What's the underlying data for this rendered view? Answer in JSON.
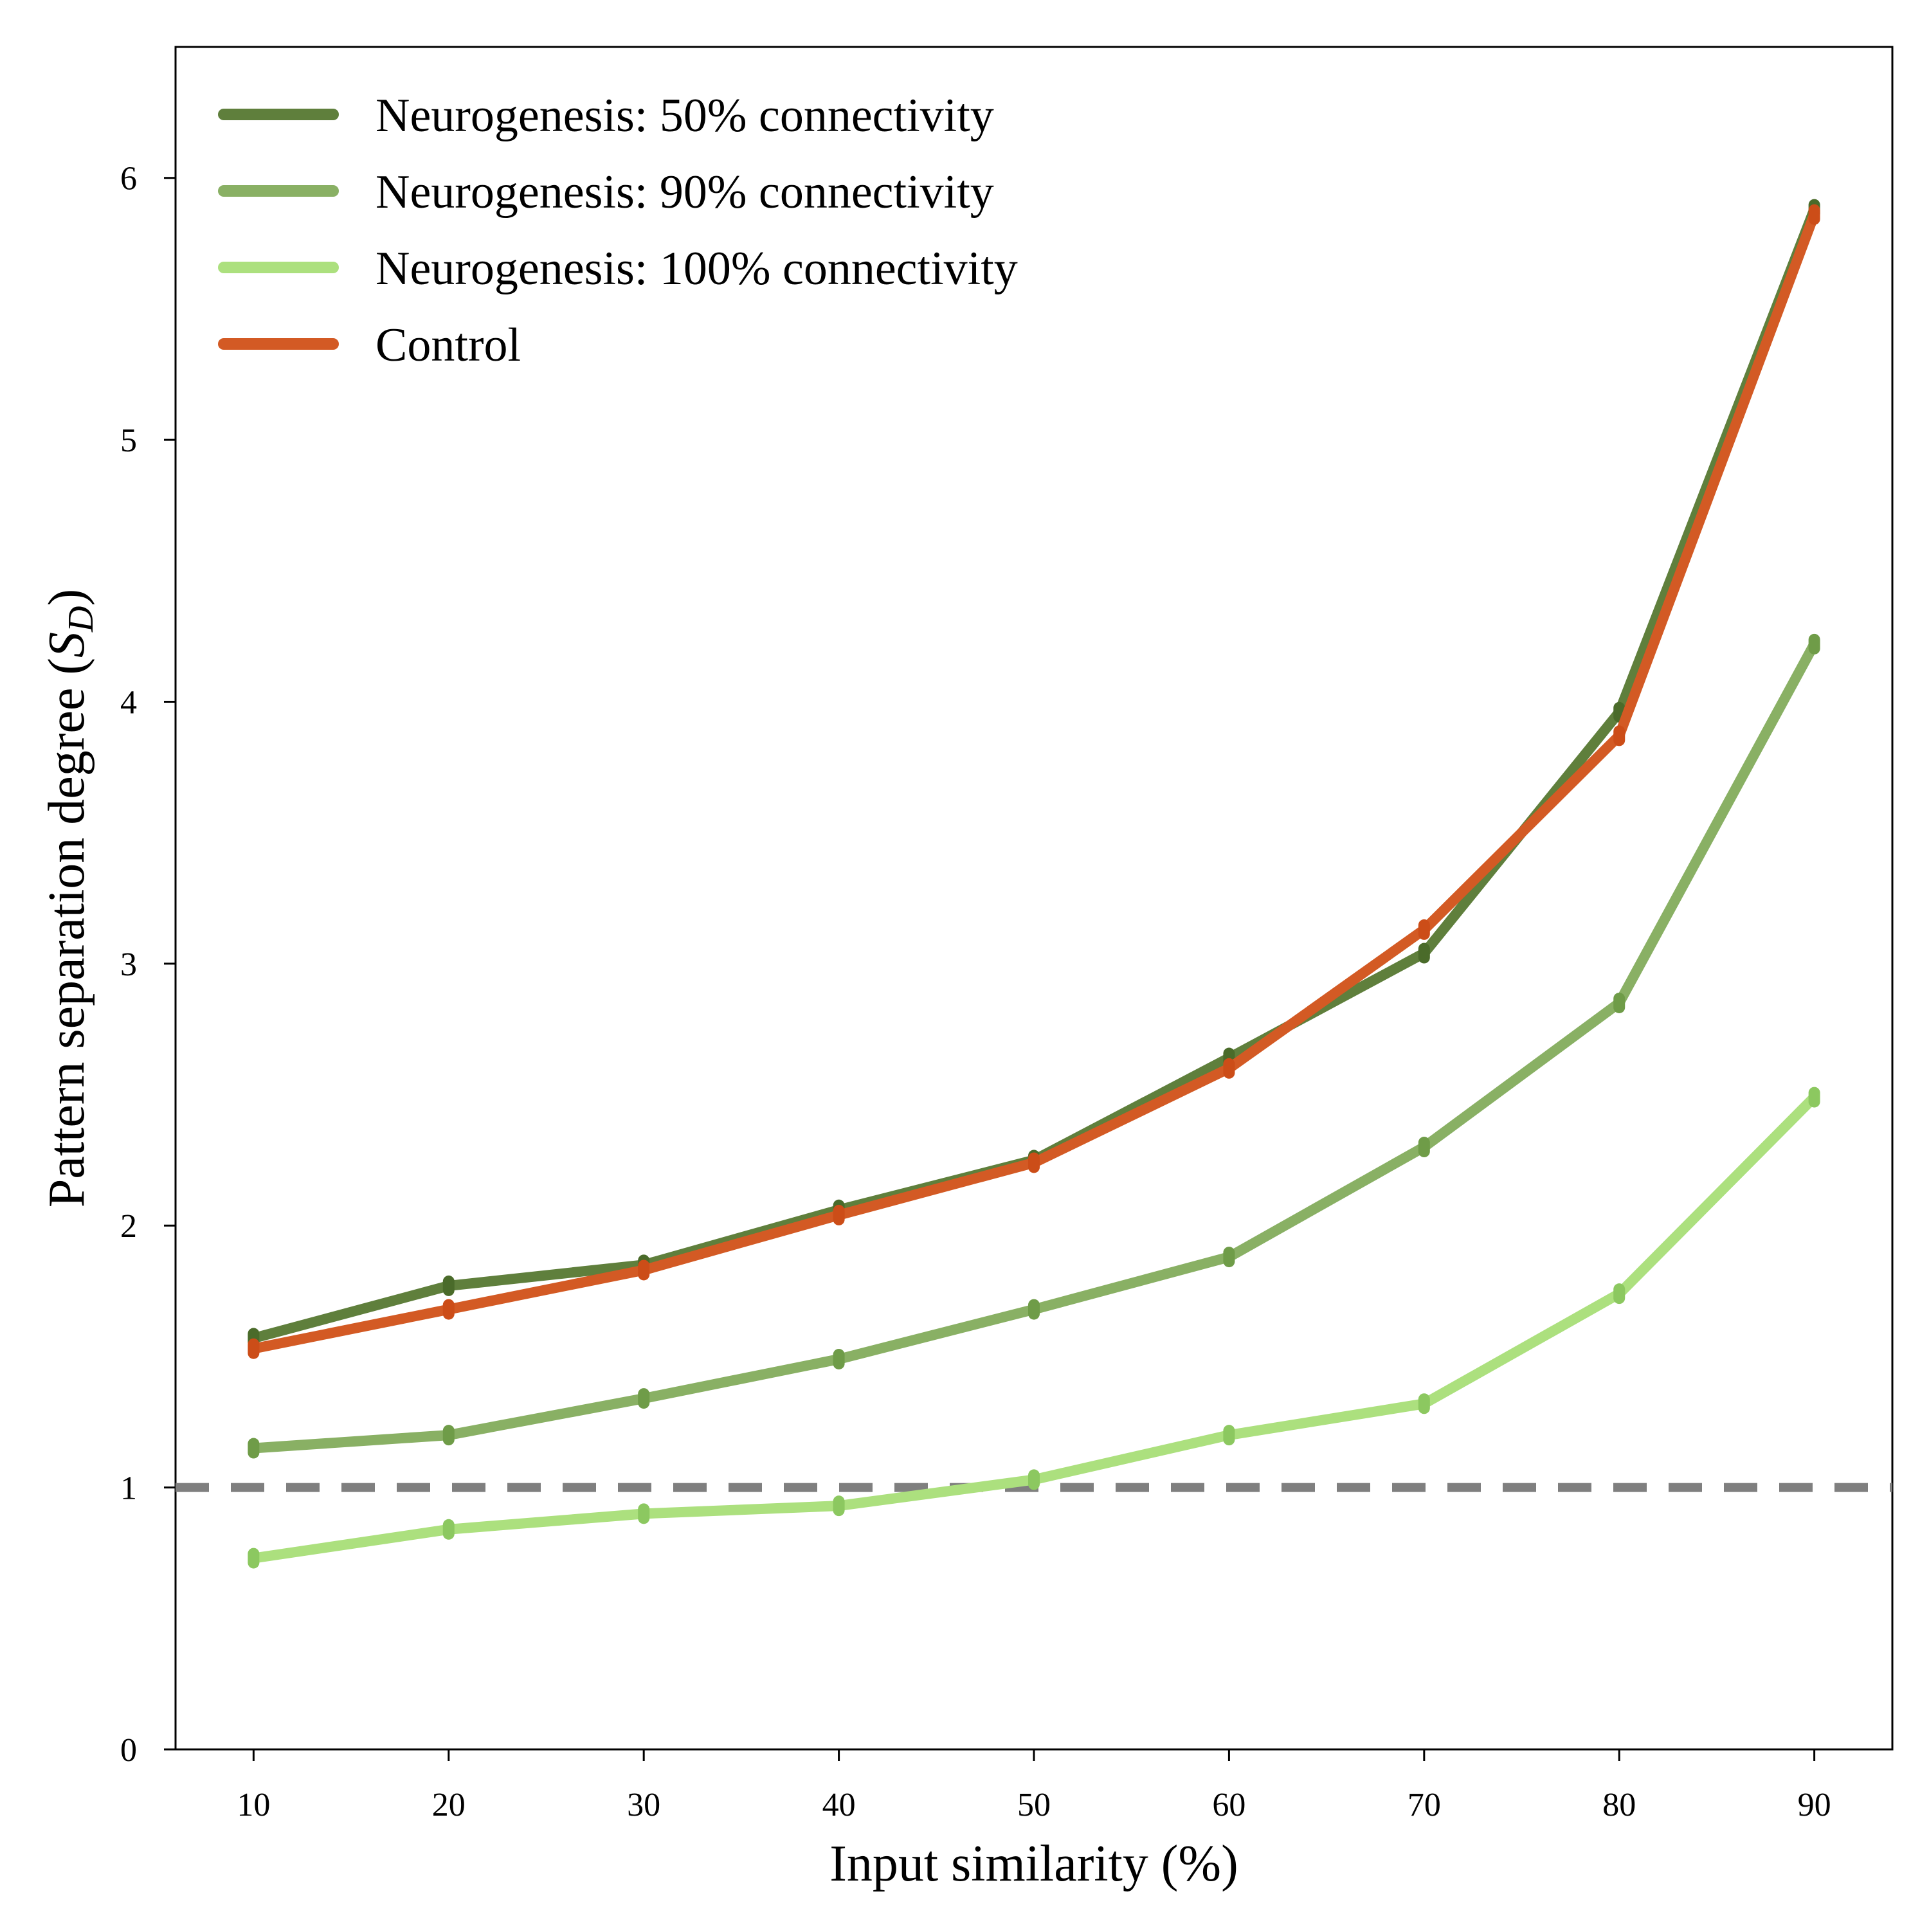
{
  "chart_data": {
    "type": "line",
    "title": "",
    "xlabel": "Input similarity (%)",
    "ylabel": "Pattern separation degree (",
    "ylabel_symbol": "S",
    "ylabel_subscript": "D",
    "ylabel_close": ")",
    "x": [
      10,
      20,
      30,
      40,
      50,
      60,
      70,
      80,
      90
    ],
    "xticks": [
      "10",
      "20",
      "30",
      "40",
      "50",
      "60",
      "70",
      "80",
      "90"
    ],
    "yticks": [
      "0",
      "1",
      "2",
      "3",
      "4",
      "5",
      "6"
    ],
    "xlim": [
      6,
      94
    ],
    "ylim": [
      0,
      6.5
    ],
    "grid": false,
    "legend_position": "top-left",
    "reference_line": {
      "y": 1,
      "style": "dashed",
      "color": "#7f7f7f"
    },
    "series": [
      {
        "name": "Neurogenesis: 50% connectivity",
        "color": "#5f7f3c",
        "marker_color": "#4a6b2a",
        "values": [
          1.57,
          1.77,
          1.85,
          2.06,
          2.25,
          2.64,
          3.04,
          3.96,
          5.88
        ]
      },
      {
        "name": "Neurogenesis: 90% connectivity",
        "color": "#89b064",
        "marker_color": "#6f9c48",
        "values": [
          1.15,
          1.2,
          1.34,
          1.49,
          1.68,
          1.88,
          2.3,
          2.85,
          4.22
        ]
      },
      {
        "name": "Neurogenesis: 100% connectivity",
        "color": "#ace07e",
        "marker_color": "#8cc860",
        "values": [
          0.73,
          0.84,
          0.9,
          0.93,
          1.03,
          1.2,
          1.32,
          1.74,
          2.49
        ]
      },
      {
        "name": "Control",
        "color": "#d35a24",
        "marker_color": "#cc4d18",
        "values": [
          1.53,
          1.68,
          1.83,
          2.04,
          2.24,
          2.6,
          3.13,
          3.87,
          5.86
        ]
      }
    ]
  }
}
